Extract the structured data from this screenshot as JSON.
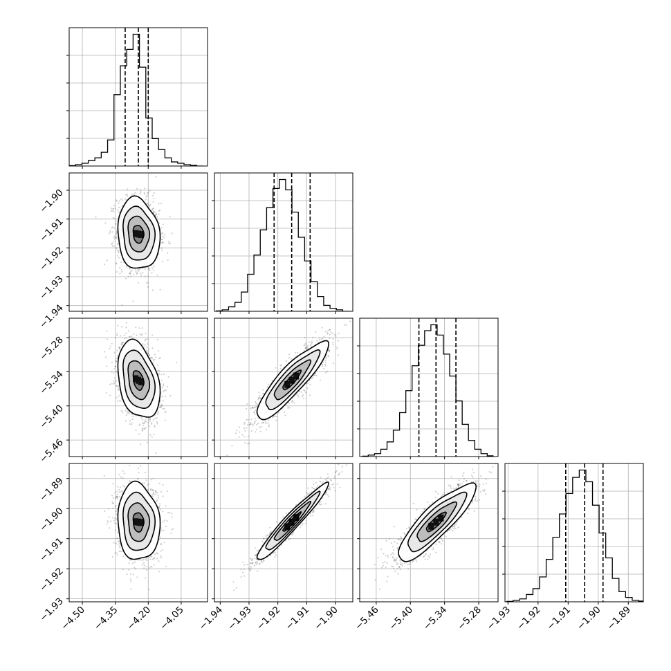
{
  "chart_data": {
    "type": "corner",
    "parameters": 4,
    "grid": true,
    "axes": [
      {
        "ticks": [
          -4.5,
          -4.35,
          -4.2,
          -4.05
        ],
        "tick_labels": [
          "−4.50",
          "−4.35",
          "−4.20",
          "−4.05"
        ],
        "range": [
          -4.56,
          -3.93
        ]
      },
      {
        "ticks": [
          -1.94,
          -1.93,
          -1.92,
          -1.91,
          -1.9
        ],
        "tick_labels": [
          "−1.94",
          "−1.93",
          "−1.92",
          "−1.91",
          "−1.90"
        ],
        "range": [
          -1.942,
          -1.894
        ]
      },
      {
        "ticks": [
          -5.46,
          -5.4,
          -5.34,
          -5.28
        ],
        "tick_labels": [
          "−5.46",
          "−5.40",
          "−5.34",
          "−5.28"
        ],
        "range": [
          -5.489,
          -5.246
        ]
      },
      {
        "ticks": [
          -1.93,
          -1.92,
          -1.91,
          -1.9,
          -1.89
        ],
        "tick_labels": [
          "−1.93",
          "−1.92",
          "−1.91",
          "−1.90",
          "−1.89"
        ],
        "range": [
          -1.931,
          -1.885
        ]
      }
    ],
    "marginals": [
      {
        "param": 0,
        "quantiles": [
          -4.305,
          -4.245,
          -4.2
        ],
        "bin_edges": [
          -4.56,
          -4.531,
          -4.502,
          -4.473,
          -4.443,
          -4.414,
          -4.385,
          -4.356,
          -4.327,
          -4.298,
          -4.269,
          -4.24,
          -4.211,
          -4.182,
          -4.153,
          -4.124,
          -4.095,
          -4.066,
          -4.037,
          -4.008,
          -3.979,
          -3.95
        ],
        "counts": [
          0.003,
          0.01,
          0.02,
          0.04,
          0.06,
          0.1,
          0.19,
          0.52,
          0.73,
          0.85,
          0.96,
          0.72,
          0.35,
          0.2,
          0.12,
          0.06,
          0.03,
          0.02,
          0.01,
          0.005,
          0.0
        ]
      },
      {
        "param": 1,
        "quantiles": [
          -1.9213,
          -1.9152,
          -1.9088
        ],
        "bin_edges": [
          -1.9415,
          -1.9393,
          -1.9371,
          -1.9349,
          -1.9327,
          -1.9305,
          -1.9283,
          -1.9261,
          -1.9239,
          -1.9217,
          -1.9195,
          -1.9173,
          -1.9151,
          -1.9129,
          -1.9107,
          -1.9085,
          -1.9063,
          -1.9041,
          -1.9019,
          -1.8997,
          -1.8975,
          -1.8953
        ],
        "counts": [
          0.003,
          0.01,
          0.03,
          0.06,
          0.13,
          0.25,
          0.38,
          0.55,
          0.7,
          0.83,
          0.89,
          0.82,
          0.67,
          0.5,
          0.34,
          0.2,
          0.1,
          0.04,
          0.02,
          0.01,
          0.0
        ]
      },
      {
        "param": 2,
        "quantiles": [
          -5.385,
          -5.355,
          -5.32
        ],
        "bin_edges": [
          -5.485,
          -5.474,
          -5.463,
          -5.452,
          -5.441,
          -5.43,
          -5.419,
          -5.408,
          -5.397,
          -5.386,
          -5.375,
          -5.364,
          -5.353,
          -5.342,
          -5.331,
          -5.32,
          -5.309,
          -5.298,
          -5.287,
          -5.276,
          -5.265,
          -5.254
        ],
        "counts": [
          0.003,
          0.01,
          0.02,
          0.05,
          0.1,
          0.18,
          0.3,
          0.45,
          0.62,
          0.76,
          0.86,
          0.9,
          0.83,
          0.7,
          0.55,
          0.38,
          0.22,
          0.11,
          0.05,
          0.02,
          0.005
        ]
      },
      {
        "param": 3,
        "quantiles": [
          -1.9108,
          -1.9045,
          -1.8984
        ],
        "bin_edges": [
          -1.9305,
          -1.9283,
          -1.9261,
          -1.9239,
          -1.9217,
          -1.9195,
          -1.9173,
          -1.9151,
          -1.9129,
          -1.9107,
          -1.9085,
          -1.9063,
          -1.9041,
          -1.9019,
          -1.8997,
          -1.8975,
          -1.8953,
          -1.8931,
          -1.8909,
          -1.8887,
          -1.8865,
          -1.8843
        ],
        "counts": [
          0.003,
          0.01,
          0.02,
          0.05,
          0.09,
          0.17,
          0.29,
          0.44,
          0.6,
          0.74,
          0.85,
          0.9,
          0.82,
          0.66,
          0.47,
          0.3,
          0.16,
          0.07,
          0.03,
          0.01,
          0.005
        ]
      }
    ],
    "joint_panels": [
      {
        "x_param": 0,
        "y_param": 1,
        "mean": [
          -4.245,
          -1.9152
        ],
        "sd": [
          0.048,
          0.0062
        ],
        "rho": -0.12
      },
      {
        "x_param": 0,
        "y_param": 2,
        "mean": [
          -4.245,
          -5.355
        ],
        "sd": [
          0.048,
          0.034
        ],
        "rho": -0.32
      },
      {
        "x_param": 1,
        "y_param": 2,
        "mean": [
          -1.9152,
          -5.355
        ],
        "sd": [
          0.0062,
          0.034
        ],
        "rho": 0.88
      },
      {
        "x_param": 0,
        "y_param": 3,
        "mean": [
          -4.245,
          -1.9045
        ],
        "sd": [
          0.048,
          0.0064
        ],
        "rho": -0.08
      },
      {
        "x_param": 1,
        "y_param": 3,
        "mean": [
          -1.9152,
          -1.9045
        ],
        "sd": [
          0.0062,
          0.0064
        ],
        "rho": 0.96
      },
      {
        "x_param": 2,
        "y_param": 3,
        "mean": [
          -5.355,
          -1.9045
        ],
        "sd": [
          0.034,
          0.0064
        ],
        "rho": 0.86
      }
    ],
    "contour_levels_sigma": [
      0.5,
      1.0,
      1.5,
      2.0
    ],
    "colors": {
      "line": "#000000",
      "points": "#555555",
      "grid": "#b0b0b0"
    }
  }
}
